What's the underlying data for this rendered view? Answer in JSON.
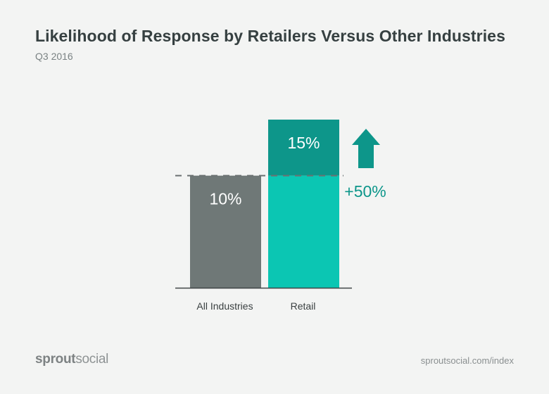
{
  "title": "Likelihood of Response by Retailers Versus Other Industries",
  "subtitle": "Q3 2016",
  "footer": {
    "brand_bold": "sprout",
    "brand_regular": "social",
    "url": "sproutsocial.com/index"
  },
  "colors": {
    "all_industries": "#6f7877",
    "retail": "#0bc6b3",
    "retail_increase": "#0d968a",
    "arrow": "#0d968a",
    "change_label": "#0d968a"
  },
  "chart_data": {
    "type": "bar",
    "title": "Likelihood of Response by Retailers Versus Other Industries",
    "subtitle": "Q3 2016",
    "categories": [
      "All Industries",
      "Retail"
    ],
    "values": [
      10,
      15
    ],
    "value_labels": [
      "10%",
      "15%"
    ],
    "ylim": [
      0,
      15
    ],
    "reference_line": 10,
    "change_label": "+50%",
    "change_icon": "up-arrow-icon",
    "grid": false,
    "legend": "none"
  }
}
